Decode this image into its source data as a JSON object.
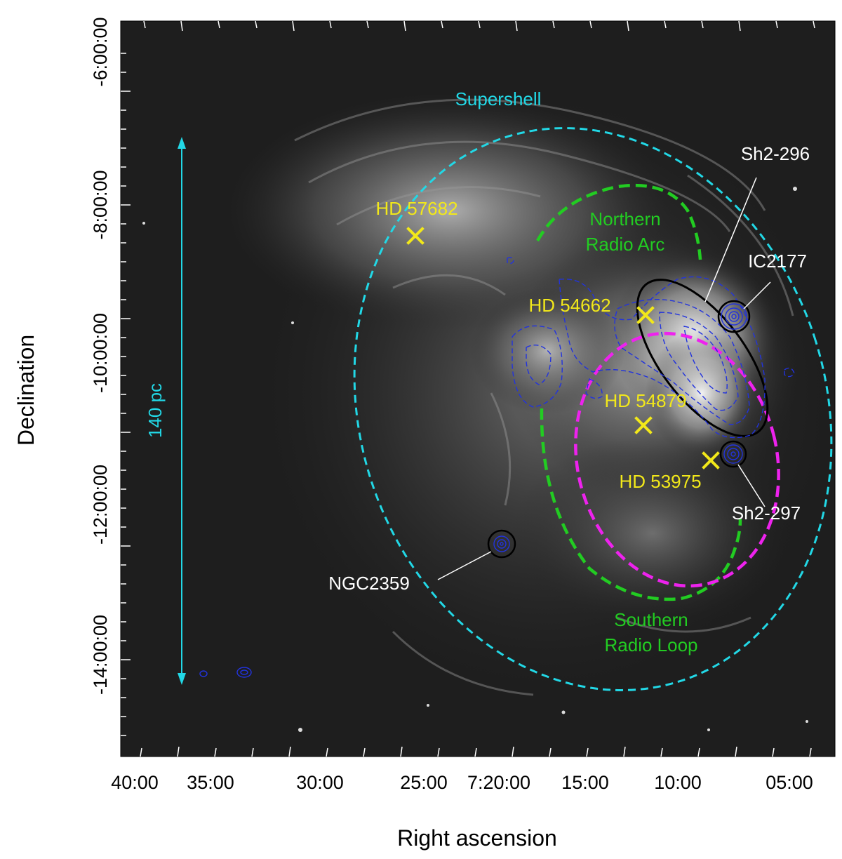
{
  "axes": {
    "xlabel": "Right ascension",
    "ylabel": "Declination",
    "x_ticks": [
      "40:00",
      "35:00",
      "30:00",
      "25:00",
      "7:20:00",
      "15:00",
      "10:00",
      "05:00"
    ],
    "y_ticks": [
      "-6:00:00",
      "-8:00:00",
      "-10:00:00",
      "-12:00:00",
      "-14:00:00"
    ]
  },
  "scale_bar": {
    "label": "140 pc",
    "color": "#22d8e6"
  },
  "labels": {
    "supershell": "Supershell",
    "northern_arc": [
      "Northern",
      "Radio Arc"
    ],
    "southern_loop": [
      "Southern",
      "Radio Loop"
    ],
    "sh2_296": "Sh2-296",
    "ic2177": "IC2177",
    "sh2_297": "Sh2-297",
    "ngc2359": "NGC2359",
    "hd57682": "HD 57682",
    "hd54662": "HD 54662",
    "hd54879": "HD 54879",
    "hd53975": "HD 53975"
  },
  "colors": {
    "supershell": "#22d8e6",
    "radio": "#22cc22",
    "magenta": "#ee22ee",
    "stars": "#f2e81a",
    "contours": "#2233dd",
    "black_outline": "#000000",
    "white_text": "#ffffff"
  },
  "icons": {
    "star_marker": "x-cross",
    "contour": "dashed-blue-contour"
  }
}
